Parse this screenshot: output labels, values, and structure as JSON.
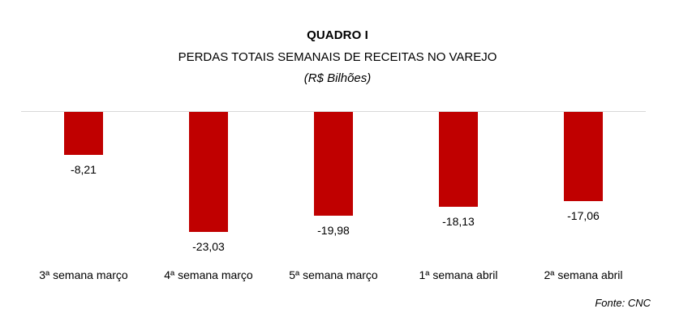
{
  "header": {
    "title": "QUADRO I",
    "subtitle": "PERDAS TOTAIS SEMANAIS DE RECEITAS NO VAREJO",
    "unit": "(R$ Bilhões)"
  },
  "footer": {
    "source": "Fonte: CNC"
  },
  "colors": {
    "bar": "#c00000",
    "baseline": "#d9d9d9"
  },
  "chart_data": {
    "type": "bar",
    "title": "QUADRO I - PERDAS TOTAIS SEMANAIS DE RECEITAS NO VAREJO",
    "subtitle": "(R$ Bilhões)",
    "xlabel": "",
    "ylabel": "R$ Bilhões",
    "categories": [
      "3ª semana março",
      "4ª semana março",
      "5ª semana março",
      "1ª semana abril",
      "2ª semana abril"
    ],
    "values": [
      -8.21,
      -23.03,
      -19.98,
      -18.13,
      -17.06
    ],
    "value_labels": [
      "-8,21",
      "-23,03",
      "-19,98",
      "-18,13",
      "-17,06"
    ],
    "ylim": [
      -25,
      0
    ],
    "grid": false,
    "legend": null,
    "source": "Fonte: CNC"
  }
}
